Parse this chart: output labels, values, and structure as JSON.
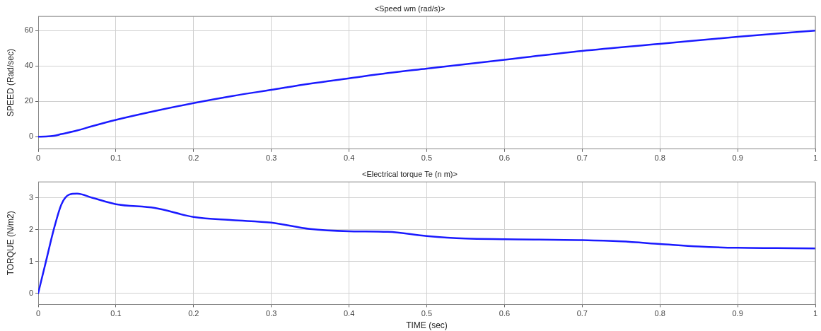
{
  "chart_data": [
    {
      "type": "line",
      "title": "<Speed wm (rad/s)>",
      "ylabel": "SPEED (Rad/sec)",
      "x": [
        0,
        0.01,
        0.02,
        0.03,
        0.05,
        0.07,
        0.1,
        0.15,
        0.2,
        0.25,
        0.3,
        0.35,
        0.4,
        0.45,
        0.5,
        0.6,
        0.7,
        0.8,
        0.9,
        1.0
      ],
      "series": [
        {
          "color": "#1a1aff",
          "values": [
            0,
            0.1,
            0.5,
            1.5,
            3.5,
            6,
            9.5,
            14.5,
            19,
            23,
            26.5,
            30,
            33,
            36,
            38.5,
            43.5,
            48.5,
            52.5,
            56.5,
            60
          ]
        }
      ],
      "xlim": [
        0,
        1
      ],
      "xticks": [
        0,
        0.1,
        0.2,
        0.3,
        0.4,
        0.5,
        0.6,
        0.7,
        0.8,
        0.9,
        1
      ],
      "ylim": [
        -7,
        68
      ],
      "yticks": [
        0,
        20,
        40,
        60
      ],
      "grid": true,
      "legend": false,
      "marker": "none",
      "line_style": "solid"
    },
    {
      "type": "line",
      "title": "<Electrical torque Te (n m)>",
      "xlabel": "TIME (sec)",
      "ylabel": "TORQUE (N/m2)",
      "x": [
        0,
        0.01,
        0.02,
        0.03,
        0.04,
        0.05,
        0.07,
        0.1,
        0.15,
        0.2,
        0.25,
        0.3,
        0.35,
        0.4,
        0.45,
        0.5,
        0.55,
        0.6,
        0.7,
        0.75,
        0.8,
        0.85,
        0.9,
        0.95,
        1.0
      ],
      "series": [
        {
          "color": "#1a1aff",
          "values": [
            0,
            1.0,
            2.0,
            2.8,
            3.1,
            3.13,
            3.0,
            2.8,
            2.68,
            2.4,
            2.3,
            2.22,
            2.02,
            1.95,
            1.93,
            1.8,
            1.72,
            1.7,
            1.67,
            1.63,
            1.55,
            1.47,
            1.43,
            1.42,
            1.41
          ]
        }
      ],
      "xlim": [
        0,
        1
      ],
      "xticks": [
        0,
        0.1,
        0.2,
        0.3,
        0.4,
        0.5,
        0.6,
        0.7,
        0.8,
        0.9,
        1
      ],
      "ylim": [
        -0.35,
        3.5
      ],
      "yticks": [
        0,
        1,
        2,
        3
      ],
      "grid": true,
      "legend": false,
      "marker": "none",
      "line_style": "solid"
    }
  ]
}
